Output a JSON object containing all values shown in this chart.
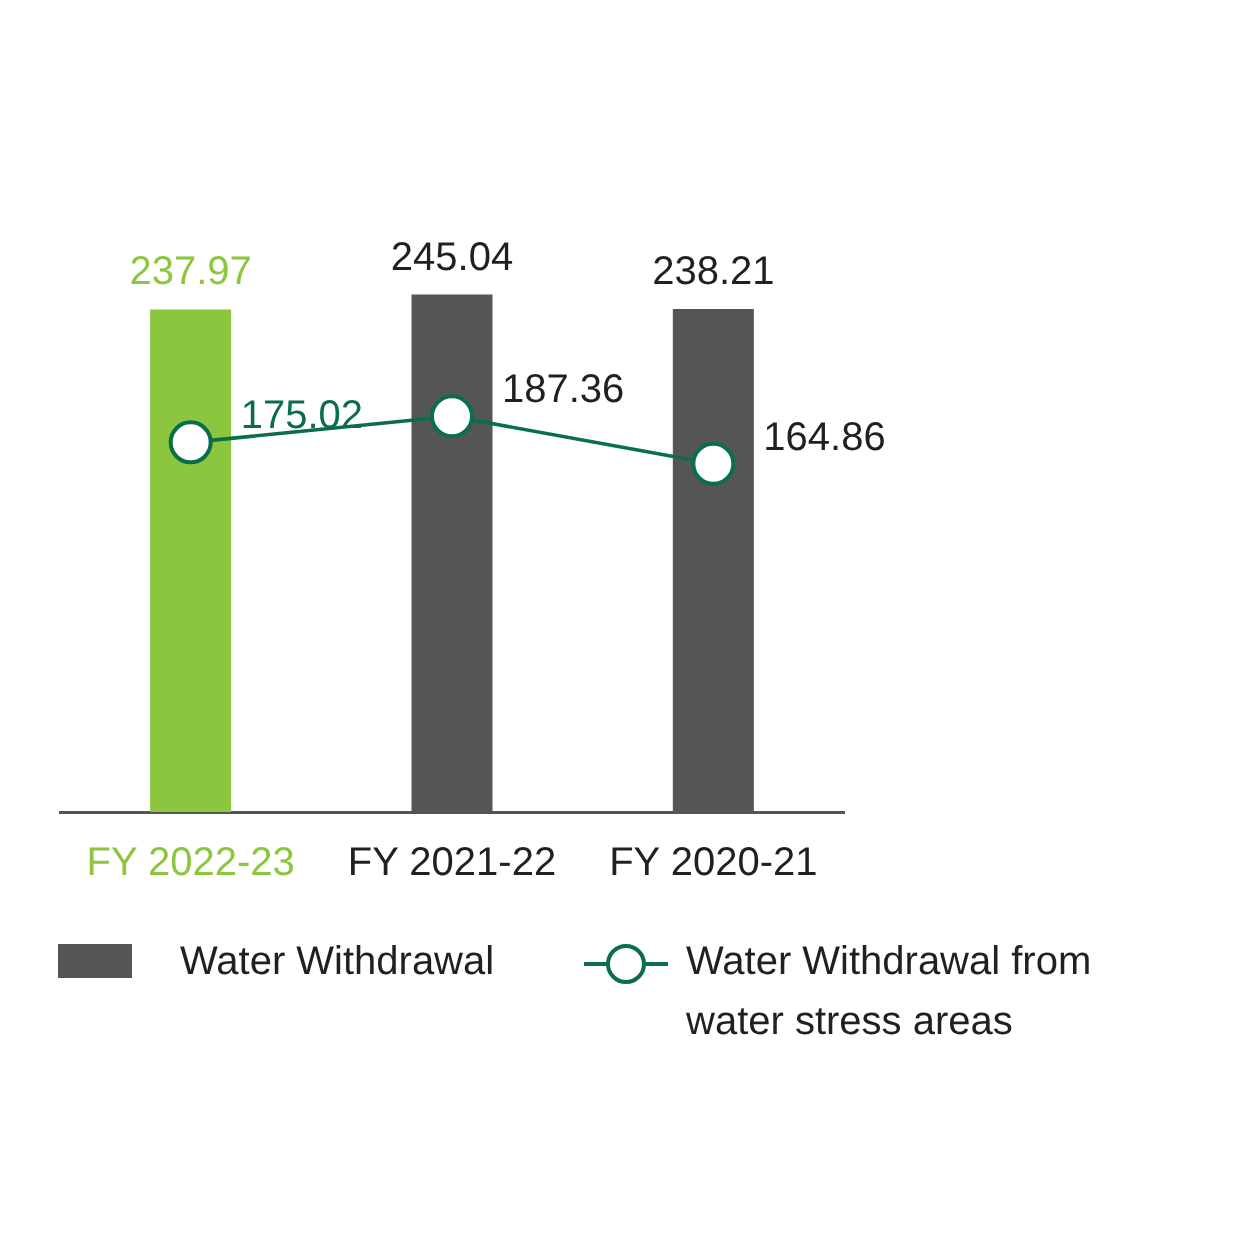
{
  "chart_data": {
    "type": "bar",
    "categories": [
      "FY 2022-23",
      "FY 2021-22",
      "FY 2020-21"
    ],
    "series": [
      {
        "name": "Water Withdrawal",
        "color": "#555555",
        "colors": [
          "#8cc63f",
          "#555555",
          "#555555"
        ],
        "values": [
          237.97,
          245.04,
          238.21
        ]
      },
      {
        "name": "Water Withdrawal from water stress areas",
        "type": "line",
        "color": "#0a6e4a",
        "values": [
          175.02,
          187.36,
          164.86
        ]
      }
    ],
    "data_labels": true,
    "legend": "bottom",
    "marker": "circle"
  }
}
